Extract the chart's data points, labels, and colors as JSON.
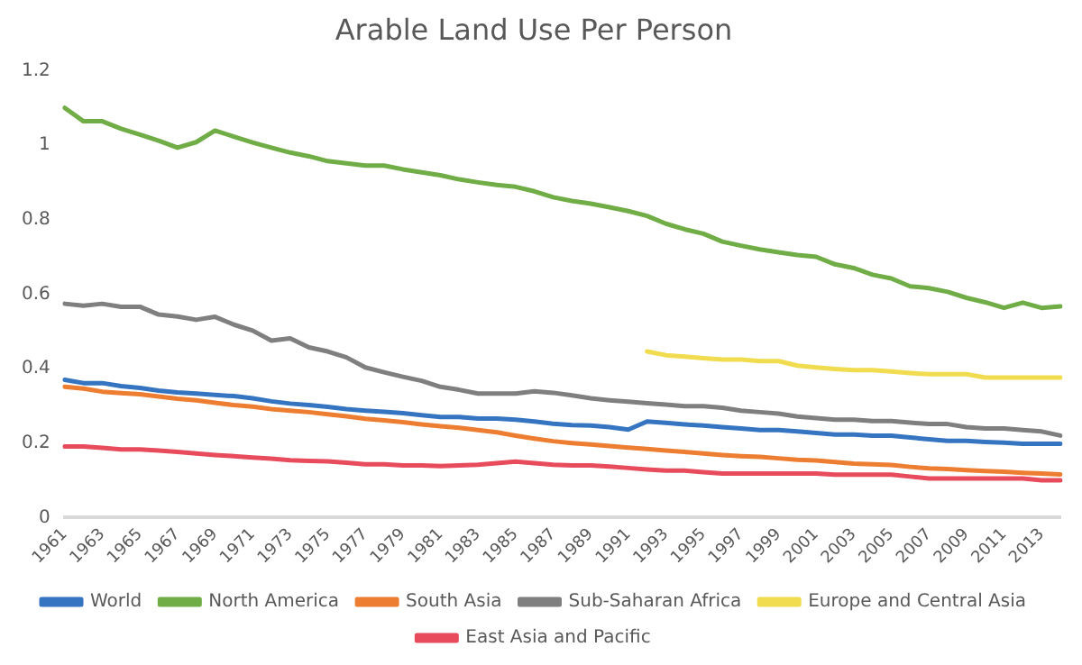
{
  "chart_data": {
    "type": "line",
    "title": "Arable Land Use Per Person",
    "categories": [
      "1961",
      null,
      "1963",
      null,
      "1965",
      null,
      "1967",
      null,
      "1969",
      null,
      "1971",
      null,
      "1973",
      null,
      "1975",
      null,
      "1977",
      null,
      "1979",
      null,
      "1981",
      null,
      "1983",
      null,
      "1985",
      null,
      "1987",
      null,
      "1989",
      null,
      "1991",
      null,
      "1993",
      null,
      "1995",
      null,
      "1997",
      null,
      "1999",
      null,
      "2001",
      null,
      "2003",
      null,
      "2005",
      null,
      "2007",
      null,
      "2009",
      null,
      "2011",
      null,
      "2013",
      null
    ],
    "ylim": [
      0,
      1.2
    ],
    "yticks": [
      0,
      0.2,
      0.4,
      0.6,
      0.8,
      1,
      1.2
    ],
    "grid": false,
    "legend": "bottom",
    "marker": "none",
    "line_style": "solid",
    "series": [
      {
        "name": "World",
        "color": "#3574c1",
        "values": [
          0.37,
          0.361,
          0.361,
          0.353,
          0.348,
          0.341,
          0.336,
          0.333,
          0.329,
          0.326,
          0.32,
          0.312,
          0.306,
          0.302,
          0.297,
          0.291,
          0.287,
          0.284,
          0.28,
          0.275,
          0.27,
          0.27,
          0.266,
          0.266,
          0.263,
          0.258,
          0.252,
          0.248,
          0.247,
          0.243,
          0.236,
          0.258,
          0.254,
          0.25,
          0.247,
          0.243,
          0.239,
          0.235,
          0.235,
          0.231,
          0.227,
          0.223,
          0.223,
          0.22,
          0.22,
          0.215,
          0.21,
          0.206,
          0.206,
          0.203,
          0.201,
          0.198,
          0.198,
          0.198
        ]
      },
      {
        "name": "North America",
        "color": "#70ad47",
        "values": [
          1.1,
          1.064,
          1.064,
          1.044,
          1.028,
          1.012,
          0.993,
          1.008,
          1.039,
          1.023,
          1.007,
          0.993,
          0.98,
          0.97,
          0.957,
          0.951,
          0.945,
          0.945,
          0.935,
          0.927,
          0.919,
          0.908,
          0.9,
          0.893,
          0.888,
          0.876,
          0.86,
          0.85,
          0.843,
          0.833,
          0.823,
          0.81,
          0.789,
          0.774,
          0.762,
          0.741,
          0.73,
          0.72,
          0.712,
          0.705,
          0.7,
          0.68,
          0.67,
          0.652,
          0.642,
          0.621,
          0.616,
          0.606,
          0.59,
          0.578,
          0.563,
          0.577,
          0.563,
          0.567
        ]
      },
      {
        "name": "South Asia",
        "color": "#ed7d31",
        "values": [
          0.351,
          0.346,
          0.338,
          0.334,
          0.331,
          0.325,
          0.319,
          0.315,
          0.308,
          0.302,
          0.298,
          0.291,
          0.287,
          0.283,
          0.277,
          0.272,
          0.265,
          0.261,
          0.256,
          0.25,
          0.245,
          0.241,
          0.235,
          0.229,
          0.22,
          0.212,
          0.205,
          0.2,
          0.196,
          0.192,
          0.188,
          0.184,
          0.18,
          0.176,
          0.172,
          0.168,
          0.165,
          0.163,
          0.159,
          0.155,
          0.153,
          0.149,
          0.145,
          0.143,
          0.141,
          0.136,
          0.132,
          0.13,
          0.127,
          0.125,
          0.123,
          0.12,
          0.118,
          0.116
        ]
      },
      {
        "name": "Sub-Saharan Africa",
        "color": "#7f7f7f",
        "values": [
          0.574,
          0.569,
          0.574,
          0.566,
          0.566,
          0.545,
          0.54,
          0.531,
          0.539,
          0.518,
          0.502,
          0.475,
          0.481,
          0.457,
          0.446,
          0.43,
          0.403,
          0.39,
          0.378,
          0.367,
          0.351,
          0.343,
          0.333,
          0.333,
          0.333,
          0.339,
          0.335,
          0.328,
          0.32,
          0.315,
          0.311,
          0.307,
          0.303,
          0.299,
          0.299,
          0.295,
          0.287,
          0.283,
          0.279,
          0.271,
          0.267,
          0.263,
          0.263,
          0.259,
          0.259,
          0.255,
          0.251,
          0.251,
          0.243,
          0.239,
          0.239,
          0.235,
          0.231,
          0.22
        ]
      },
      {
        "name": "Europe and Central Asia",
        "color": "#f0dc4e",
        "values": [
          null,
          null,
          null,
          null,
          null,
          null,
          null,
          null,
          null,
          null,
          null,
          null,
          null,
          null,
          null,
          null,
          null,
          null,
          null,
          null,
          null,
          null,
          null,
          null,
          null,
          null,
          null,
          null,
          null,
          null,
          null,
          0.446,
          0.436,
          0.432,
          0.428,
          0.424,
          0.424,
          0.42,
          0.42,
          0.408,
          0.403,
          0.399,
          0.396,
          0.396,
          0.392,
          0.388,
          0.385,
          0.385,
          0.385,
          0.376,
          0.376,
          0.376,
          0.376,
          0.376
        ]
      },
      {
        "name": "East Asia and Pacific",
        "color": "#e84c5c",
        "values": [
          0.191,
          0.191,
          0.187,
          0.183,
          0.183,
          0.18,
          0.176,
          0.172,
          0.168,
          0.165,
          0.161,
          0.158,
          0.154,
          0.152,
          0.151,
          0.147,
          0.143,
          0.143,
          0.14,
          0.14,
          0.138,
          0.14,
          0.142,
          0.146,
          0.15,
          0.146,
          0.142,
          0.14,
          0.14,
          0.137,
          0.133,
          0.129,
          0.126,
          0.126,
          0.122,
          0.118,
          0.118,
          0.118,
          0.118,
          0.118,
          0.118,
          0.115,
          0.115,
          0.115,
          0.115,
          0.11,
          0.105,
          0.105,
          0.105,
          0.105,
          0.105,
          0.105,
          0.1,
          0.1
        ]
      }
    ]
  }
}
